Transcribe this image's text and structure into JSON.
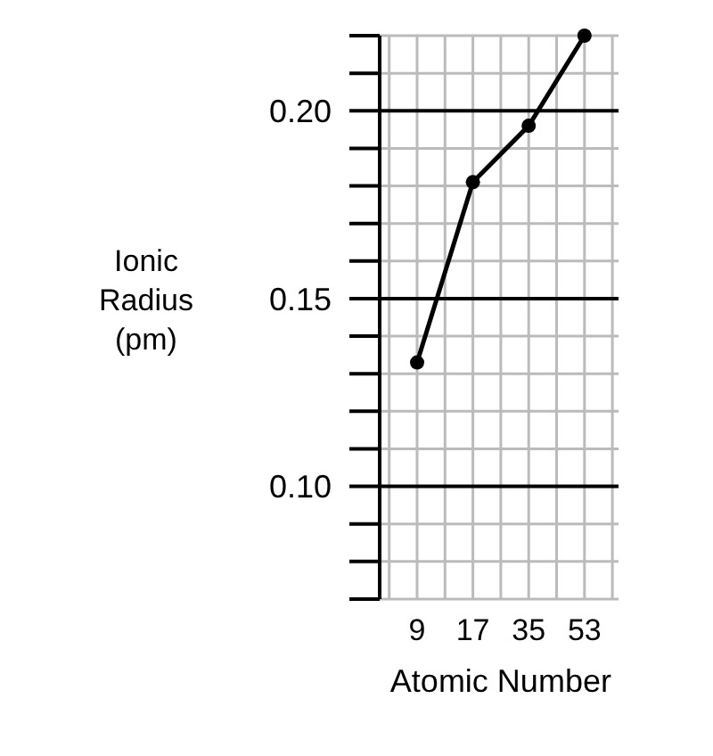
{
  "chart_data": {
    "type": "line",
    "xlabel": "Atomic Number",
    "ylabel": "Ionic\nRadius\n(pm)",
    "categories": [
      "9",
      "17",
      "35",
      "53"
    ],
    "series": [
      {
        "color": "#000000",
        "values": [
          0.133,
          0.181,
          0.196,
          0.22
        ]
      }
    ],
    "ylim": [
      0.07,
      0.22
    ],
    "yticks": [
      {
        "value": 0.07,
        "label": null
      },
      {
        "value": 0.08,
        "label": null
      },
      {
        "value": 0.09,
        "label": null
      },
      {
        "value": 0.1,
        "label": "0.10"
      },
      {
        "value": 0.11,
        "label": null
      },
      {
        "value": 0.12,
        "label": null
      },
      {
        "value": 0.13,
        "label": null
      },
      {
        "value": 0.14,
        "label": null
      },
      {
        "value": 0.15,
        "label": "0.15"
      },
      {
        "value": 0.16,
        "label": null
      },
      {
        "value": 0.17,
        "label": null
      },
      {
        "value": 0.18,
        "label": null
      },
      {
        "value": 0.19,
        "label": null
      },
      {
        "value": 0.2,
        "label": "0.20"
      },
      {
        "value": 0.21,
        "label": null
      },
      {
        "value": 0.22,
        "label": null
      }
    ],
    "grid": true,
    "marker": "circle",
    "line_style": "solid"
  }
}
